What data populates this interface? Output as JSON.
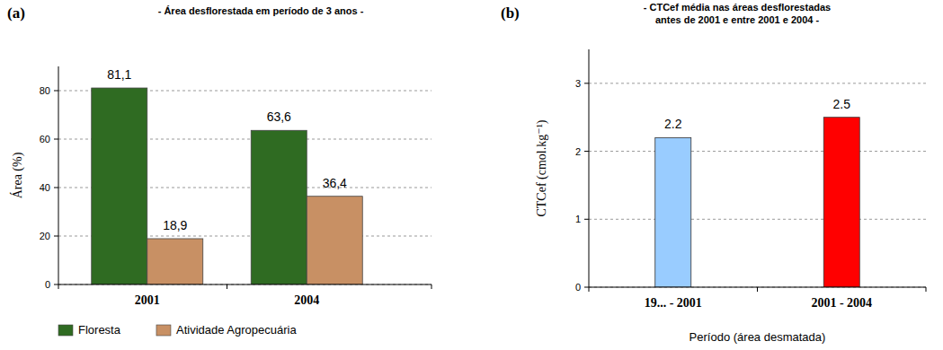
{
  "chart_data": [
    {
      "type": "bar",
      "annotations": [
        "(a)"
      ],
      "title": "- Área desflorestada em período de 3 anos -",
      "ylabel": "Área (%)",
      "categories": [
        "2001",
        "2004"
      ],
      "series": [
        {
          "name": "Floresta",
          "color": "#2f6b22",
          "values": [
            81.1,
            63.6
          ],
          "value_labels": [
            "81,1",
            "63,6"
          ]
        },
        {
          "name": "Atividade Agropecuária",
          "color": "#c89064",
          "values": [
            18.9,
            36.4
          ],
          "value_labels": [
            "18,9",
            "36,4"
          ]
        }
      ],
      "ylim": [
        0,
        90
      ],
      "yticks": [
        0,
        20,
        40,
        60,
        80
      ],
      "grid": true,
      "legend": "bottom",
      "data_labels": true
    },
    {
      "type": "bar",
      "annotations": [
        "(b)"
      ],
      "title": "- CTCef média nas áreas desflorestadas",
      "subtitle": "antes de 2001  e  entre 2001 e 2004 -",
      "ylabel": "CTCef  (cmol.kg⁻¹)",
      "xlabel": "Período  (área desmatada)",
      "categories": [
        "19... - 2001",
        "2001 - 2004"
      ],
      "values": [
        2.2,
        2.5
      ],
      "colors": [
        "#99ccff",
        "#ff0000"
      ],
      "ylim": [
        0,
        3.5
      ],
      "yticks": [
        0,
        1,
        2,
        3
      ],
      "grid": true,
      "data_labels": true
    }
  ]
}
